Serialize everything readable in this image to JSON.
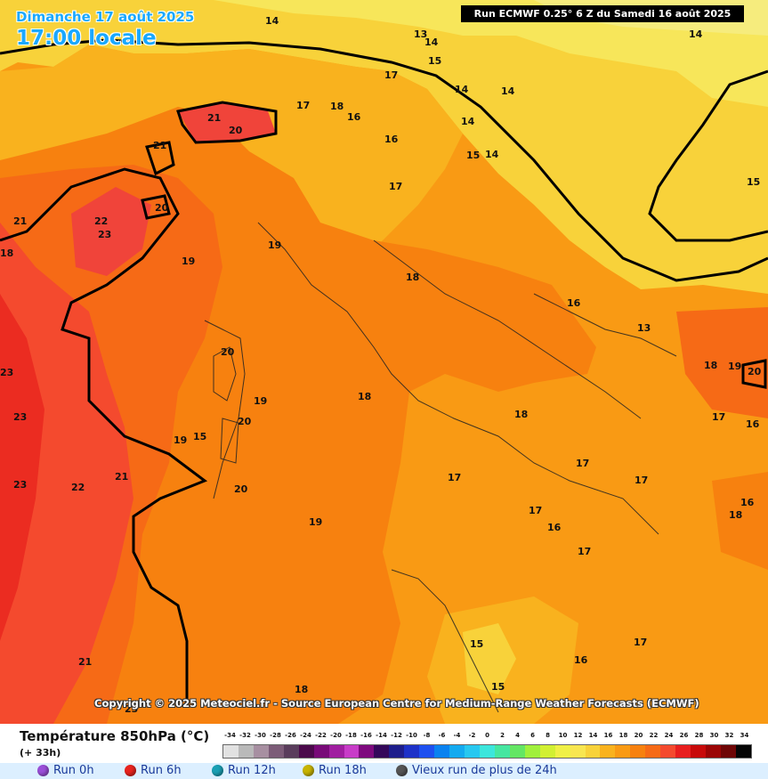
{
  "header": {
    "date_text": "Dimanche 17 août 2025",
    "local_time": "17:00 locale",
    "run_info": "Run ECMWF 0.25° 6 Z du Samedi 16 août 2025"
  },
  "copyright": "Copyright © 2025 Meteociel.fr - Source European Centre for Medium-Range Weather Forecasts (ECMWF)",
  "isotherm_labels": [
    "14",
    "13",
    "14",
    "15",
    "14",
    "17",
    "17",
    "18",
    "16",
    "16",
    "14",
    "14",
    "14",
    "15",
    "14",
    "15",
    "17",
    "21",
    "20",
    "21",
    "20",
    "21",
    "22",
    "23",
    "19",
    "19",
    "18",
    "16",
    "13",
    "18",
    "19",
    "20",
    "23",
    "20",
    "18",
    "19",
    "15",
    "20",
    "19",
    "18",
    "17",
    "16",
    "23",
    "22",
    "21",
    "20",
    "17",
    "17",
    "17",
    "16",
    "17",
    "17",
    "19",
    "18",
    "16",
    "23",
    "15",
    "16",
    "15",
    "21",
    "18",
    "17",
    "23",
    "18"
  ],
  "colors": {
    "t15": "#f8d23a",
    "t16": "#f9b21e",
    "t17": "#f99a14",
    "t18": "#f7810f",
    "t20": "#f66a16",
    "t21": "#f44a2e",
    "t22": "#f0443a",
    "t14": "#f7e65a",
    "t13": "#f6ec7d"
  },
  "legend": {
    "title": "Température 850hPa (°C)",
    "subtitle": "(+ 33h)",
    "scale_labels": [
      "-34",
      "-32",
      "-30",
      "-28",
      "-26",
      "-24",
      "-22",
      "-20",
      "-18",
      "-16",
      "-14",
      "-12",
      "-10",
      "-8",
      "-6",
      "-4",
      "-2",
      "0",
      "2",
      "4",
      "6",
      "8",
      "10",
      "12",
      "14",
      "16",
      "18",
      "20",
      "22",
      "24",
      "26",
      "28",
      "30",
      "32",
      "34"
    ],
    "scale_colors": [
      "#e1e1e1",
      "#b9b9b9",
      "#a78fa1",
      "#7c5c78",
      "#5a3d5c",
      "#4b0a4b",
      "#780a78",
      "#a01ea0",
      "#c83cc8",
      "#7e0a7e",
      "#34085a",
      "#1e1e8c",
      "#1e32c8",
      "#1e50f0",
      "#0a82f0",
      "#14aaf0",
      "#28c8f0",
      "#3ce6dc",
      "#46e6a0",
      "#64e664",
      "#a0f03c",
      "#d2f032",
      "#f0f046",
      "#f8e650",
      "#f8d23a",
      "#f9b21e",
      "#f99a14",
      "#f7810f",
      "#f66a16",
      "#f44a2e",
      "#e81e1e",
      "#c80a0a",
      "#9b0505",
      "#6e0505",
      "#050505"
    ]
  },
  "runs": [
    {
      "label": "Run 0h",
      "color": "#9a4fd8"
    },
    {
      "label": "Run 6h",
      "color": "#e8231e"
    },
    {
      "label": "Run 12h",
      "color": "#1aa0b4"
    },
    {
      "label": "Run 18h",
      "color": "#c8b400"
    },
    {
      "label": "Vieux run de plus de 24h",
      "color": "#555555"
    }
  ]
}
